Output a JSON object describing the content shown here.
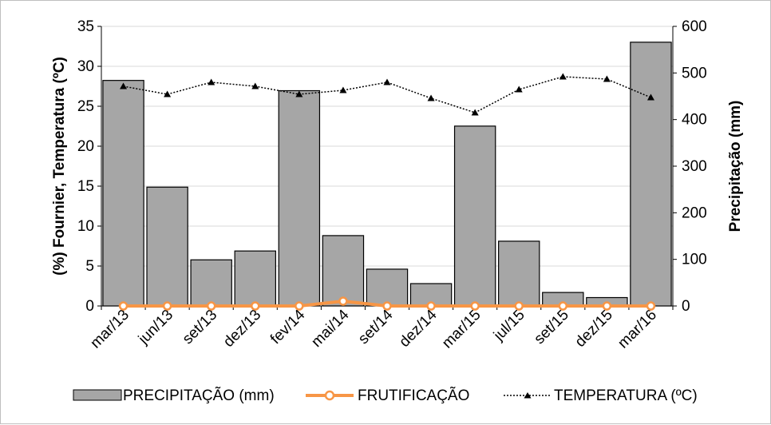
{
  "chart_data": {
    "type": "bar",
    "categories": [
      "mar/13",
      "jun/13",
      "set/13",
      "dez/13",
      "fev/14",
      "mai/14",
      "set/14",
      "dez/14",
      "mar/15",
      "jul/15",
      "set/15",
      "dez/15",
      "mar/16"
    ],
    "left_axis": {
      "label": "(%) Fournier, Temperatura (ºC)",
      "ylim": [
        0,
        35
      ],
      "ticks": [
        0,
        5,
        10,
        15,
        20,
        25,
        30,
        35
      ]
    },
    "right_axis": {
      "label": "Precipitação (mm)",
      "ylim": [
        0,
        600
      ],
      "ticks": [
        0,
        100,
        200,
        300,
        400,
        500,
        600
      ]
    },
    "series": [
      {
        "name": "PRECIPITAÇÃO (mm)",
        "kind": "bar",
        "axis": "right",
        "color": "#a6a6a6",
        "values": [
          484,
          255,
          99,
          118,
          462,
          151,
          79,
          48,
          386,
          139,
          29,
          18,
          566
        ]
      },
      {
        "name": "FRUTIFICAÇÃO",
        "kind": "line",
        "axis": "left",
        "color": "#f79646",
        "marker": "circle",
        "values": [
          0,
          0,
          0,
          0,
          0,
          0.6,
          0,
          0,
          0,
          0,
          0,
          0,
          0
        ]
      },
      {
        "name": "TEMPERATURA (ºC)",
        "kind": "line",
        "axis": "left",
        "color": "#000000",
        "marker": "triangle",
        "dash": "dotted",
        "values": [
          27.5,
          26.5,
          28.0,
          27.5,
          26.5,
          27.0,
          28.0,
          26.0,
          24.2,
          27.1,
          28.7,
          28.4,
          26.1
        ]
      }
    ],
    "legend_position": "bottom",
    "grid": "horizontal"
  }
}
